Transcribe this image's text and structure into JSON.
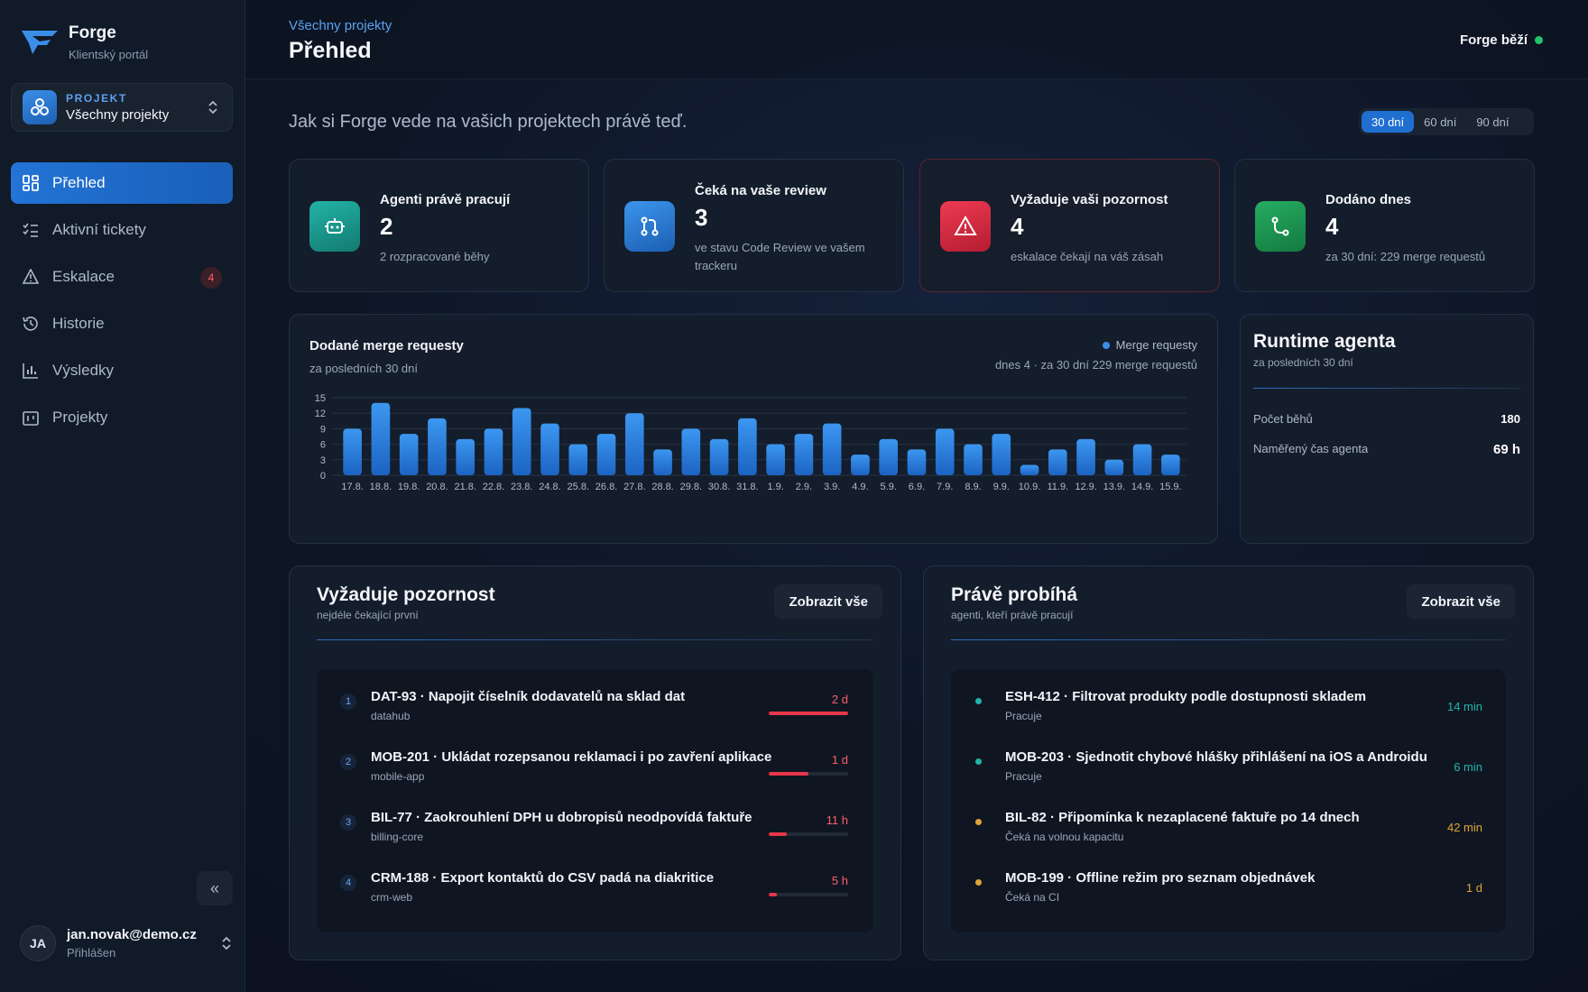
{
  "brand": {
    "name": "Forge",
    "subtitle": "Klientský portál"
  },
  "project": {
    "kicker": "PROJEKT",
    "value": "Všechny projekty"
  },
  "nav": [
    {
      "label": "Přehled",
      "icon": "dashboard-icon",
      "active": true
    },
    {
      "label": "Aktivní tickety",
      "icon": "checklist-icon"
    },
    {
      "label": "Eskalace",
      "icon": "warning-icon",
      "badge": "4"
    },
    {
      "label": "Historie",
      "icon": "history-icon"
    },
    {
      "label": "Výsledky",
      "icon": "bar-chart-icon"
    },
    {
      "label": "Projekty",
      "icon": "projects-icon"
    }
  ],
  "user": {
    "initials": "JA",
    "email": "jan.novak@demo.cz",
    "status": "Přihlášen"
  },
  "header": {
    "breadcrumb": "Všechny projekty",
    "title": "Přehled",
    "status": "Forge běží"
  },
  "intro": "Jak si Forge vede na vašich projektech právě teď.",
  "range": {
    "options": [
      "30 dní",
      "60 dní",
      "90 dní"
    ],
    "selected": "30 dní"
  },
  "kpis": [
    {
      "label": "Agenti právě pracují",
      "value": "2",
      "sub": "2 rozpracované běhy",
      "icon": "robot-icon",
      "color": "#1aa59a"
    },
    {
      "label": "Čeká na vaše review",
      "value": "3",
      "sub": "ve stavu Code Review ve vašem trackeru",
      "icon": "merge-request-icon",
      "color": "#2a7fdc"
    },
    {
      "label": "Vyžaduje vaši pozornost",
      "value": "4",
      "sub": "eskalace čekají na váš zásah",
      "icon": "alert-icon",
      "color": "#e0304a"
    },
    {
      "label": "Dodáno dnes",
      "value": "4",
      "sub": "za 30 dní: 229 merge requestů",
      "icon": "merge-icon",
      "color": "#1f9a58"
    }
  ],
  "chart": {
    "title": "Dodané merge requesty",
    "subtitle": "za posledních 30 dní",
    "legend": "Merge requesty",
    "summary": "dnes 4 · za 30 dní 229 merge requestů"
  },
  "chart_data": {
    "type": "bar",
    "categories": [
      "17.8.",
      "18.8.",
      "19.8.",
      "20.8.",
      "21.8.",
      "22.8.",
      "23.8.",
      "24.8.",
      "25.8.",
      "26.8.",
      "27.8.",
      "28.8.",
      "29.8.",
      "30.8.",
      "31.8.",
      "1.9.",
      "2.9.",
      "3.9.",
      "4.9.",
      "5.9.",
      "6.9.",
      "7.9.",
      "8.9.",
      "9.9.",
      "10.9.",
      "11.9.",
      "12.9.",
      "13.9.",
      "14.9.",
      "15.9."
    ],
    "values": [
      9,
      14,
      8,
      11,
      7,
      9,
      13,
      10,
      6,
      8,
      12,
      5,
      9,
      7,
      11,
      6,
      8,
      10,
      4,
      7,
      5,
      9,
      6,
      8,
      2,
      5,
      7,
      3,
      6,
      4
    ],
    "yticks": [
      0,
      3,
      6,
      9,
      12,
      15
    ],
    "ylim": [
      0,
      15
    ],
    "grid": true,
    "color": "#2f86e6"
  },
  "runtime": {
    "title": "Runtime agenta",
    "subtitle": "za posledních 30 dní",
    "rows": [
      {
        "label": "Počet běhů",
        "value": "180"
      },
      {
        "label": "Naměřený čas agenta",
        "value": "69 h"
      }
    ]
  },
  "attention": {
    "title": "Vyžaduje pozornost",
    "subtitle": "nejdéle čekající první",
    "button": "Zobrazit vše",
    "items": [
      {
        "num": "1",
        "title": "DAT-93 · Napojit číselník dodavatelů na sklad dat",
        "project": "datahub",
        "age": "2 d",
        "progress": 1.0
      },
      {
        "num": "2",
        "title": "MOB-201 · Ukládat rozepsanou reklamaci i po zavření aplikace",
        "project": "mobile-app",
        "age": "1 d",
        "progress": 0.5
      },
      {
        "num": "3",
        "title": "BIL-77 · Zaokrouhlení DPH u dobropisů neodpovídá faktuře",
        "project": "billing-core",
        "age": "11 h",
        "progress": 0.23
      },
      {
        "num": "4",
        "title": "CRM-188 · Export kontaktů do CSV padá na diakritice",
        "project": "crm-web",
        "age": "5 h",
        "progress": 0.1
      }
    ]
  },
  "running": {
    "title": "Právě probíhá",
    "subtitle": "agenti, kteří právě pracují",
    "button": "Zobrazit vše",
    "items": [
      {
        "title": "ESH-412 · Filtrovat produkty podle dostupnosti skladem",
        "status": "Pracuje",
        "time": "14 min",
        "color": "#22b3a8"
      },
      {
        "title": "MOB-203 · Sjednotit chybové hlášky přihlášení na iOS a Androidu",
        "status": "Pracuje",
        "time": "6 min",
        "color": "#22b3a8"
      },
      {
        "title": "BIL-82 · Připomínka k nezaplacené faktuře po 14 dnech",
        "status": "Čeká na volnou kapacitu",
        "time": "42 min",
        "color": "#e0a43a"
      },
      {
        "title": "MOB-199 · Offline režim pro seznam objednávek",
        "status": "Čeká na CI",
        "time": "1 d",
        "color": "#e0a43a"
      }
    ]
  }
}
